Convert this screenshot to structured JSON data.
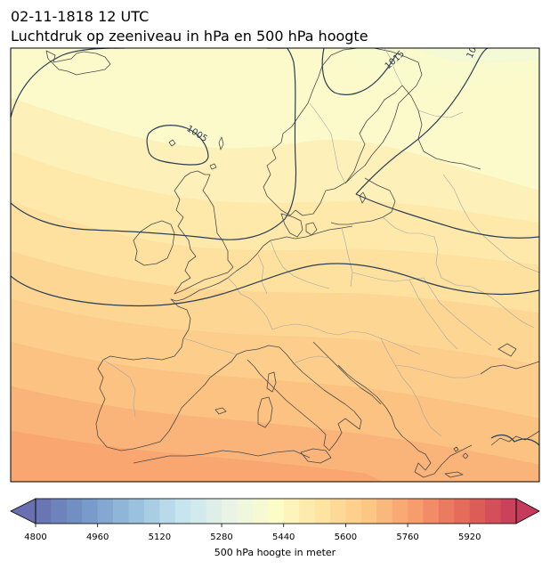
{
  "title": {
    "line1": "02-11-1818 12 UTC",
    "line2": "Luchtdruk op zeeniveau in hPa en 500 hPa hoogte"
  },
  "isobar_labels": [
    "1005",
    "1015",
    "10"
  ],
  "colorbar": {
    "label": "500 hPa hoogte in meter",
    "ticks": [
      "4800",
      "4960",
      "5120",
      "5280",
      "5440",
      "5600",
      "5760",
      "5920"
    ],
    "min": 4800,
    "max": 6040,
    "step": 40,
    "colormap": "RdYlBu_r",
    "extend": "both"
  },
  "colors": {
    "isobar": "#2b3f55",
    "coastline": "#4a4a4a",
    "border": "#9a9a9a"
  }
}
